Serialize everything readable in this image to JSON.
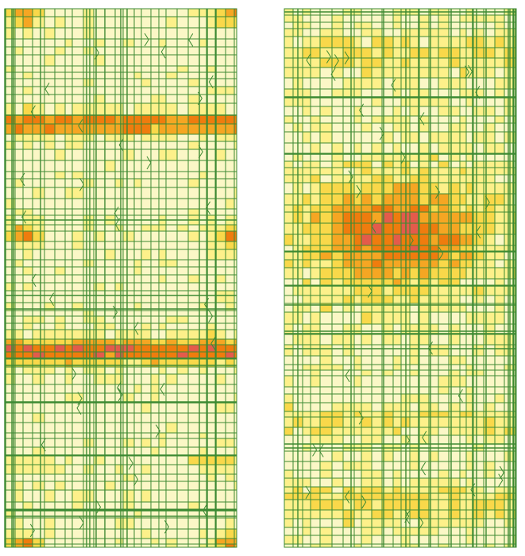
{
  "figure": {
    "panels": [
      {
        "id": "left",
        "label": "",
        "pattern": "horizontal-bands"
      },
      {
        "id": "right",
        "label": "",
        "pattern": "central-cluster"
      }
    ],
    "colors": {
      "background": "#fbf7c6",
      "grid": "#3d8a33",
      "level1": "#fdf08a",
      "level2": "#f9d84a",
      "level3": "#f5a623",
      "level4": "#ef7c0e",
      "level5": "#e45b4b",
      "level6": "#8b2a10"
    }
  }
}
